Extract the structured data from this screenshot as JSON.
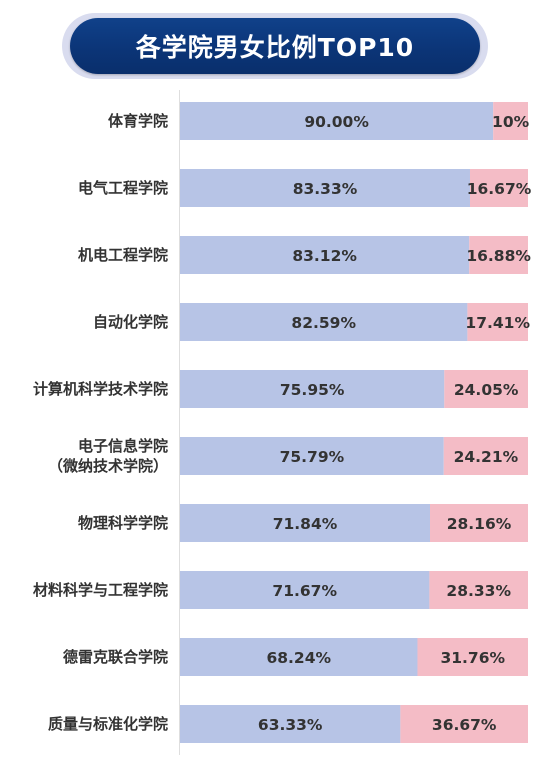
{
  "title": "各学院男女比例TOP10",
  "colors": {
    "male": "#b7c4e6",
    "female": "#f4bcc6",
    "axis": "#dedede",
    "banner": "#0d3a7e"
  },
  "chart_data": {
    "type": "bar",
    "orientation": "horizontal",
    "stacked": true,
    "percent": true,
    "categories": [
      "体育学院",
      "电气工程学院",
      "机电工程学院",
      "自动化学院",
      "计算机科学技术学院",
      "电子信息学院\n（微纳技术学院）",
      "物理科学学院",
      "材料科学与工程学院",
      "德雷克联合学院",
      "质量与标准化学院"
    ],
    "series": [
      {
        "color": "#b7c4e6",
        "values": [
          90.0,
          83.33,
          83.12,
          82.59,
          75.95,
          75.79,
          71.84,
          71.67,
          68.24,
          63.33
        ],
        "labels": [
          "90.00%",
          "83.33%",
          "83.12%",
          "82.59%",
          "75.95%",
          "75.79%",
          "71.84%",
          "71.67%",
          "68.24%",
          "63.33%"
        ]
      },
      {
        "color": "#f4bcc6",
        "values": [
          10,
          16.67,
          16.88,
          17.41,
          24.05,
          24.21,
          28.16,
          28.33,
          31.76,
          36.67
        ],
        "labels": [
          "10%",
          "16.67%",
          "16.88%",
          "17.41%",
          "24.05%",
          "24.21%",
          "28.16%",
          "28.33%",
          "31.76%",
          "36.67%"
        ]
      }
    ],
    "xlim": [
      0,
      100
    ],
    "grid": false,
    "legend": "none"
  }
}
